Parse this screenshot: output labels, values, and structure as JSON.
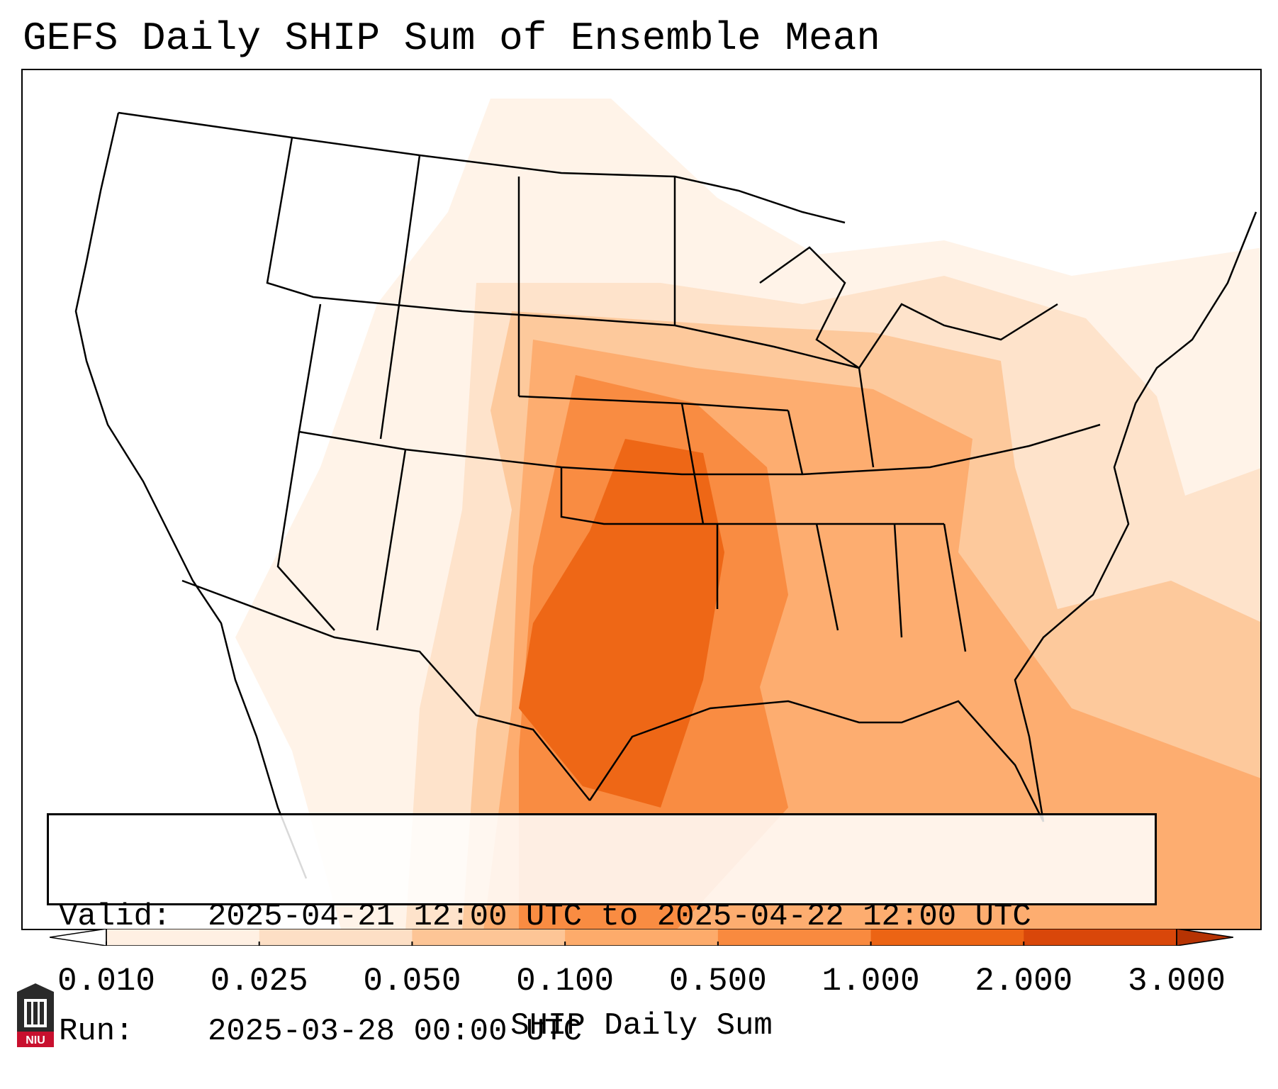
{
  "title": "GEFS Daily SHIP Sum of Ensemble Mean",
  "info": {
    "valid_label": "Valid:",
    "valid_value": "2025-04-21 12:00 UTC to 2025-04-22 12:00 UTC",
    "run_label": "Run:",
    "run_value": "2025-03-28 00:00 UTC"
  },
  "colorbar": {
    "label": "SHIP Daily Sum",
    "ticks": [
      "0.010",
      "0.025",
      "0.050",
      "0.100",
      "0.500",
      "1.000",
      "2.000",
      "3.000"
    ],
    "colors": [
      "#fff0e3",
      "#fddfc5",
      "#fdc596",
      "#fdab6b",
      "#f98a3f",
      "#ec6414",
      "#d9470a"
    ],
    "extend_low_color": "#ffffff",
    "extend_high_color": "#b63303"
  },
  "logo": {
    "text": "NIU"
  }
}
